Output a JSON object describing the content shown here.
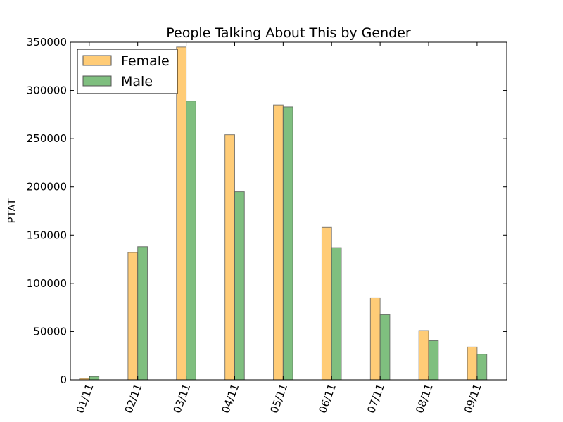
{
  "chart_data": {
    "type": "bar",
    "title": "People Talking About This by Gender",
    "xlabel": "",
    "ylabel": "PTAT",
    "categories": [
      "01/11",
      "02/11",
      "03/11",
      "04/11",
      "05/11",
      "06/11",
      "07/11",
      "08/11",
      "09/11"
    ],
    "series": [
      {
        "name": "Female",
        "color": "#ffcc77",
        "values": [
          1500,
          132000,
          345000,
          254000,
          285000,
          158000,
          85000,
          51000,
          34000
        ]
      },
      {
        "name": "Male",
        "color": "#7fbf7f",
        "values": [
          3500,
          138000,
          289000,
          195000,
          283000,
          137000,
          67500,
          40500,
          26500
        ]
      }
    ],
    "ylim": [
      0,
      350000
    ],
    "yticks": [
      "0",
      "50000",
      "100000",
      "150000",
      "200000",
      "250000",
      "300000",
      "350000"
    ],
    "grid": false,
    "legend": "top-left"
  }
}
